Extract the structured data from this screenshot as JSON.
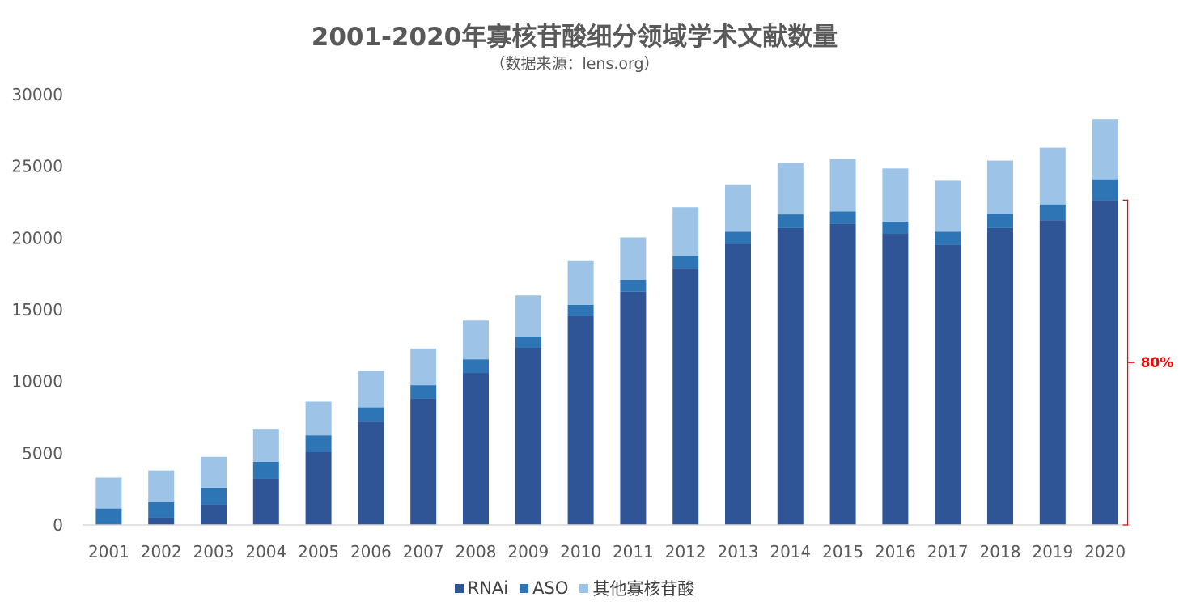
{
  "chart_data": {
    "type": "bar",
    "stacked": true,
    "title": "2001-2020年寡核苷酸细分领域学术文献数量",
    "subtitle": "（数据来源：lens.org）",
    "categories": [
      "2001",
      "2002",
      "2003",
      "2004",
      "2005",
      "2006",
      "2007",
      "2008",
      "2009",
      "2010",
      "2011",
      "2012",
      "2013",
      "2014",
      "2015",
      "2016",
      "2017",
      "2018",
      "2019",
      "2020"
    ],
    "series": [
      {
        "name": "RNAi",
        "color": "#2f5597",
        "values": [
          100,
          550,
          1450,
          3250,
          5100,
          7200,
          8800,
          10600,
          12350,
          14550,
          16250,
          17900,
          19600,
          20700,
          21000,
          20300,
          19550,
          20700,
          21250,
          22650
        ]
      },
      {
        "name": "ASO",
        "color": "#2e75b6",
        "values": [
          1050,
          1050,
          1150,
          1150,
          1150,
          1000,
          950,
          950,
          800,
          800,
          850,
          850,
          850,
          950,
          850,
          850,
          900,
          1000,
          1100,
          1450
        ]
      },
      {
        "name": "其他寡核苷酸",
        "color": "#9dc3e6",
        "values": [
          2150,
          2200,
          2150,
          2300,
          2350,
          2550,
          2550,
          2700,
          2850,
          3050,
          2950,
          3400,
          3250,
          3600,
          3650,
          3700,
          3550,
          3700,
          3950,
          4200
        ]
      }
    ],
    "ylim": [
      0,
      30000
    ],
    "yticks": [
      0,
      5000,
      10000,
      15000,
      20000,
      25000,
      30000
    ],
    "grid": false,
    "legend_position": "bottom",
    "annotation": {
      "text": "80%",
      "color": "#ff0000",
      "category": "2020",
      "from": 0,
      "to": 22650
    }
  }
}
